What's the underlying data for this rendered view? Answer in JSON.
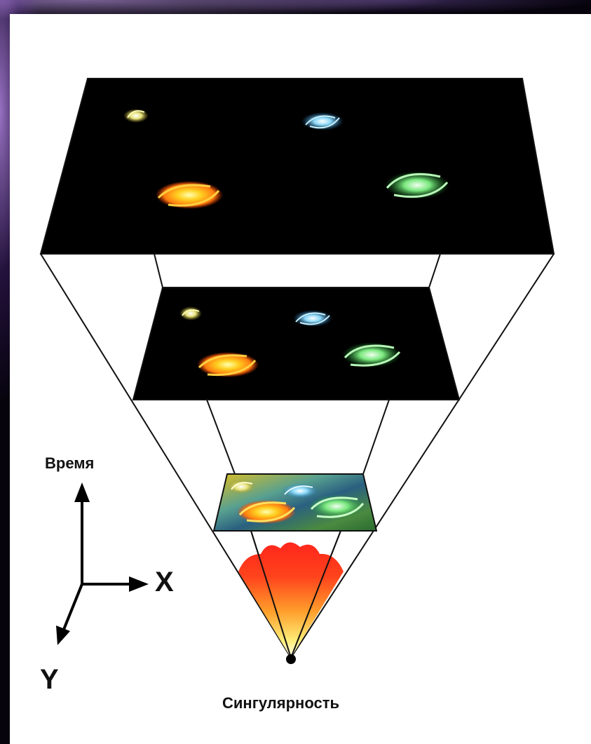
{
  "labels": {
    "time": "Время",
    "x_axis": "X",
    "y_axis": "Y",
    "singularity": "Сингулярность"
  },
  "colors": {
    "galaxy_yellow": "#e8e070",
    "galaxy_blue": "#7fd4f4",
    "galaxy_orange": "#ffb020",
    "galaxy_green": "#6fe07a",
    "hot_red": "#ff1a10",
    "hot_yellow": "#fff27a"
  },
  "icons": [
    "galaxy-icon",
    "up-arrow",
    "right-arrow",
    "down-left-arrow"
  ]
}
